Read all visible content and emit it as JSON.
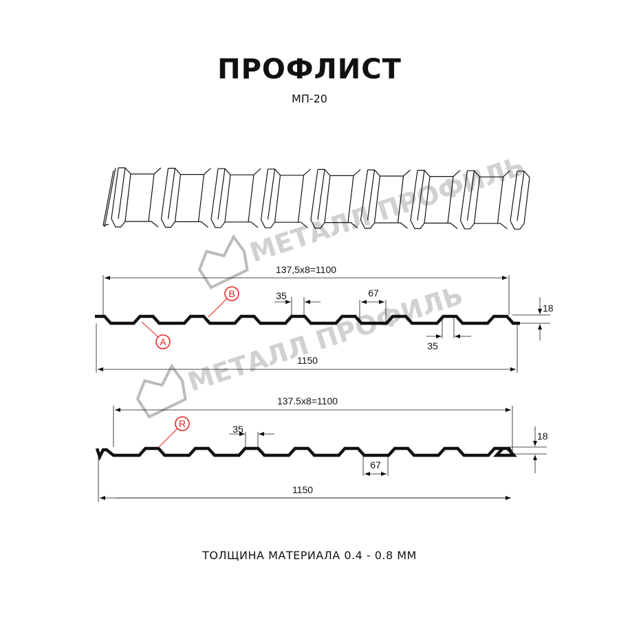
{
  "header": {
    "title": "ПРОФЛИСТ",
    "subtitle": "МП-20"
  },
  "watermark": {
    "text": "МЕТАЛЛ ПРОФИЛЬ"
  },
  "profile_a": {
    "pitch_label": "137,5x8=1100",
    "width_label": "1150",
    "top_width_label": "35",
    "top_width_label_2": "35",
    "bottom_width_label": "67",
    "height_label": "18",
    "markers": [
      "A",
      "B"
    ]
  },
  "profile_r": {
    "pitch_label": "137.5x8=1100",
    "width_label": "1150",
    "top_width_label": "35",
    "bottom_width_label": "67",
    "height_label": "18",
    "markers": [
      "R"
    ]
  },
  "footer": {
    "thickness": "ТОЛЩИНА МАТЕРИАЛА 0.4 - 0.8 ММ"
  },
  "colors": {
    "line": "#111111",
    "marker": "#e02020",
    "watermark": "#9a9a9a"
  }
}
